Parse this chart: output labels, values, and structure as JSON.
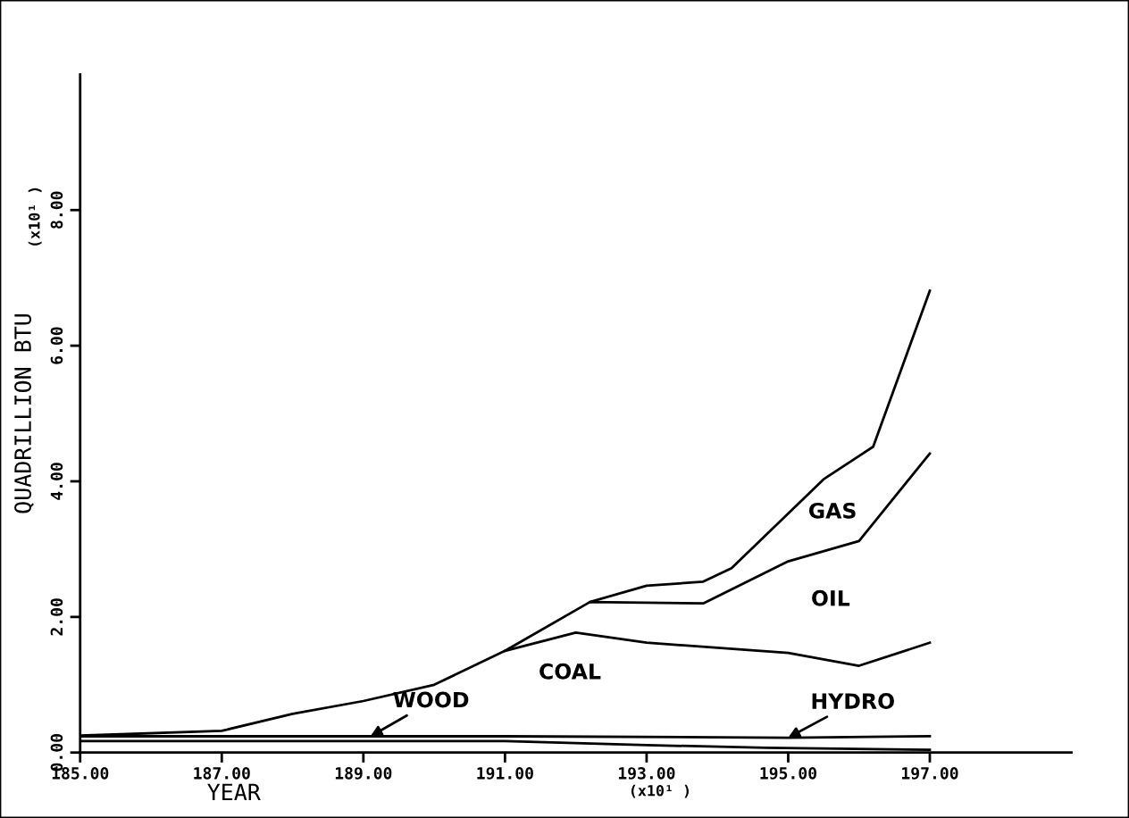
{
  "chart_data": {
    "type": "line",
    "ylabel": "QUADRILLION BTU",
    "xlabel": "YEAR",
    "xlim": [
      185,
      199
    ],
    "ylim": [
      0,
      10
    ],
    "xticks": [
      {
        "value": 185,
        "label": "185.00"
      },
      {
        "value": 187,
        "label": "187.00"
      },
      {
        "value": 189,
        "label": "189.00"
      },
      {
        "value": 191,
        "label": "191.00"
      },
      {
        "value": 193,
        "label": "193.00"
      },
      {
        "value": 195,
        "label": "195.00"
      },
      {
        "value": 197,
        "label": "197.00"
      }
    ],
    "yticks": [
      {
        "value": 0,
        "label": "0.00"
      },
      {
        "value": 2,
        "label": "2.00"
      },
      {
        "value": 4,
        "label": "4.00"
      },
      {
        "value": 6,
        "label": "6.00"
      },
      {
        "value": 8,
        "label": "8.00"
      }
    ],
    "grid": false,
    "marker": "none",
    "line_style": "solid",
    "series": [
      {
        "color": "#000000",
        "x": [
          185,
          187,
          191,
          193,
          194.7,
          197
        ],
        "values": [
          0.17,
          0.17,
          0.17,
          0.11,
          0.07,
          0.04
        ]
      },
      {
        "color": "#000000",
        "x": [
          185,
          191,
          195,
          197
        ],
        "values": [
          0.24,
          0.24,
          0.22,
          0.24
        ]
      },
      {
        "color": "#000000",
        "x": [
          185,
          187,
          188,
          189,
          190,
          191,
          192,
          193,
          195,
          196,
          197
        ],
        "values": [
          0.25,
          0.32,
          0.57,
          0.76,
          1.0,
          1.5,
          1.77,
          1.62,
          1.47,
          1.28,
          1.62
        ]
      },
      {
        "color": "#000000",
        "x": [
          191,
          192.2,
          193.8,
          195,
          196,
          197
        ],
        "values": [
          1.5,
          2.22,
          2.2,
          2.82,
          3.12,
          4.41
        ]
      },
      {
        "color": "#000000",
        "x": [
          192.2,
          193,
          193.8,
          194.2,
          195.5,
          196.2,
          197
        ],
        "values": [
          2.22,
          2.46,
          2.52,
          2.72,
          4.03,
          4.51,
          6.81
        ]
      }
    ],
    "annotations": [
      "(x10¹ )",
      "(x10¹ )",
      "COAL",
      "OIL",
      "GAS",
      {
        "text": "WOOD",
        "x": 189.1,
        "y": 0.24
      },
      {
        "text": "HYDRO",
        "x": 195.0,
        "y": 0.22
      }
    ]
  }
}
